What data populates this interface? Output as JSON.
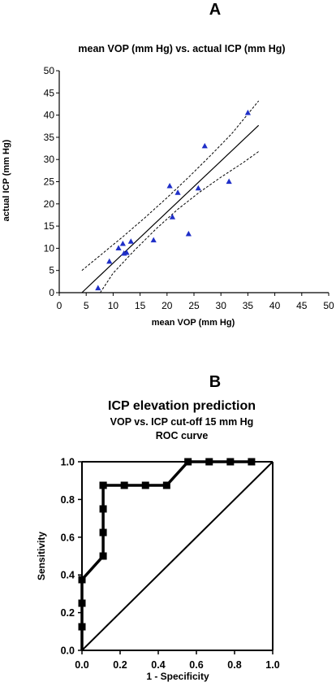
{
  "chart_data": [
    {
      "panel_label": "A",
      "type": "scatter",
      "title": "mean VOP (mm Hg) vs. actual ICP (mm Hg)",
      "xlabel": "mean VOP (mm Hg)",
      "ylabel": "actual ICP (mm Hg)",
      "xlim": [
        0,
        50
      ],
      "ylim": [
        0,
        50
      ],
      "xticks": [
        "0",
        "5",
        "10",
        "15",
        "20",
        "25",
        "30",
        "35",
        "40",
        "45",
        "50"
      ],
      "yticks": [
        "0",
        "5",
        "10",
        "15",
        "20",
        "25",
        "30",
        "35",
        "40",
        "45",
        "50"
      ],
      "points": [
        {
          "x": 7.2,
          "y": 1.0
        },
        {
          "x": 9.3,
          "y": 7.0
        },
        {
          "x": 11.0,
          "y": 10.0
        },
        {
          "x": 11.8,
          "y": 11.0
        },
        {
          "x": 12.0,
          "y": 8.8
        },
        {
          "x": 12.5,
          "y": 9.0
        },
        {
          "x": 13.3,
          "y": 11.5
        },
        {
          "x": 17.5,
          "y": 11.8
        },
        {
          "x": 20.5,
          "y": 24.0
        },
        {
          "x": 21.0,
          "y": 17.0
        },
        {
          "x": 22.0,
          "y": 22.5
        },
        {
          "x": 24.0,
          "y": 13.2
        },
        {
          "x": 25.8,
          "y": 23.5
        },
        {
          "x": 27.0,
          "y": 33.0
        },
        {
          "x": 31.5,
          "y": 25.0
        },
        {
          "x": 35.0,
          "y": 40.5
        }
      ],
      "regression": {
        "x": [
          4.2,
          37.0
        ],
        "y": [
          0.0,
          37.7
        ]
      },
      "ci_upper": {
        "x": [
          4.2,
          8,
          12,
          16,
          20,
          24,
          28,
          32,
          37
        ],
        "y": [
          5.0,
          8.8,
          12.8,
          17.0,
          21.4,
          26.0,
          30.8,
          35.8,
          43.2
        ]
      },
      "ci_lower": {
        "x": [
          7.6,
          10,
          14,
          18,
          22,
          26,
          30,
          34,
          37
        ],
        "y": [
          0.0,
          4.4,
          9.6,
          14.4,
          18.8,
          22.6,
          26.0,
          29.2,
          31.8
        ]
      },
      "colors": {
        "marker": "#1f2fc8",
        "line": "#000000"
      }
    },
    {
      "panel_label": "B",
      "type": "line",
      "title": "ICP elevation prediction",
      "subtitle_lines": [
        "VOP vs. ICP cut-off 15 mm Hg",
        "ROC curve"
      ],
      "xlabel": "1 - Specificity",
      "ylabel": "Sensitivity",
      "xlim": [
        0,
        1
      ],
      "ylim": [
        0,
        1
      ],
      "xticks": [
        "0.0",
        "0.2",
        "0.4",
        "0.6",
        "0.8",
        "1.0"
      ],
      "yticks": [
        "0.0",
        "0.2",
        "0.4",
        "0.6",
        "0.8",
        "1.0"
      ],
      "series": [
        {
          "x": [
            0,
            0,
            0,
            0,
            0.111,
            0.111,
            0.111,
            0.111,
            0.111,
            0.222,
            0.333,
            0.444,
            0.556,
            0.667,
            0.778,
            0.889
          ],
          "y": [
            0.125,
            0.25,
            0.375,
            0.375,
            0.5,
            0.625,
            0.75,
            0.875,
            0.875,
            0.875,
            0.875,
            0.875,
            1.0,
            1.0,
            1.0,
            1.0
          ]
        }
      ],
      "reference_line": {
        "x": [
          0,
          1
        ],
        "y": [
          0,
          1
        ]
      },
      "colors": {
        "marker": "#000000",
        "line": "#000000"
      }
    }
  ]
}
